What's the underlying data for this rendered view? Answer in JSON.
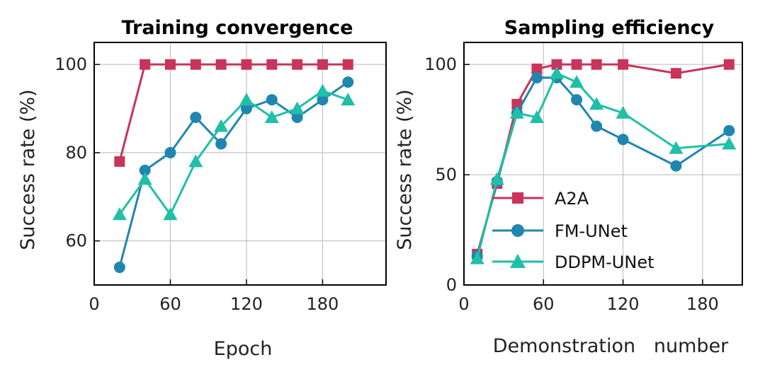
{
  "colors": {
    "A2A": "#c8345a",
    "FM-UNet": "#1f86b0",
    "DDPM-UNet": "#1fbfa8"
  },
  "chart_data": [
    {
      "type": "line",
      "title": "Training convergence",
      "xlabel": "Epoch",
      "ylabel": "Success rate (%)",
      "xlim": [
        0,
        230
      ],
      "ylim": [
        50,
        105
      ],
      "xticks": [
        0,
        60,
        120,
        180
      ],
      "yticks": [
        60,
        80,
        100
      ],
      "grid": true,
      "legend": "none",
      "series": [
        {
          "name": "A2A",
          "marker": "square",
          "x": [
            20,
            40,
            60,
            80,
            100,
            120,
            140,
            160,
            180,
            200
          ],
          "y": [
            78,
            100,
            100,
            100,
            100,
            100,
            100,
            100,
            100,
            100
          ]
        },
        {
          "name": "FM-UNet",
          "marker": "circle",
          "x": [
            20,
            40,
            60,
            80,
            100,
            120,
            140,
            160,
            180,
            200
          ],
          "y": [
            54,
            76,
            80,
            88,
            82,
            90,
            92,
            88,
            92,
            96
          ]
        },
        {
          "name": "DDPM-UNet",
          "marker": "triangle",
          "x": [
            20,
            40,
            60,
            80,
            100,
            120,
            140,
            160,
            180,
            200
          ],
          "y": [
            66,
            74,
            66,
            78,
            86,
            92,
            88,
            90,
            94,
            92
          ]
        }
      ]
    },
    {
      "type": "line",
      "title": "Sampling efficiency",
      "xlabel": "Demonstration   number",
      "ylabel": "Success rate (%)",
      "xlim": [
        0,
        210
      ],
      "ylim": [
        0,
        110
      ],
      "xticks": [
        0,
        60,
        120,
        180
      ],
      "yticks": [
        0,
        50,
        100
      ],
      "grid": true,
      "legend": "lower-left",
      "series": [
        {
          "name": "A2A",
          "marker": "square",
          "x": [
            10,
            25,
            40,
            55,
            70,
            85,
            100,
            120,
            160,
            200
          ],
          "y": [
            14,
            46,
            82,
            98,
            100,
            100,
            100,
            100,
            96,
            100
          ]
        },
        {
          "name": "FM-UNet",
          "marker": "circle",
          "x": [
            10,
            25,
            40,
            55,
            70,
            85,
            100,
            120,
            160,
            200
          ],
          "y": [
            13,
            47,
            78,
            94,
            94,
            84,
            72,
            66,
            54,
            70
          ]
        },
        {
          "name": "DDPM-UNet",
          "marker": "triangle",
          "x": [
            10,
            25,
            40,
            55,
            70,
            85,
            100,
            120,
            160,
            200
          ],
          "y": [
            12,
            48,
            78,
            76,
            96,
            92,
            82,
            78,
            62,
            64
          ]
        }
      ]
    }
  ]
}
